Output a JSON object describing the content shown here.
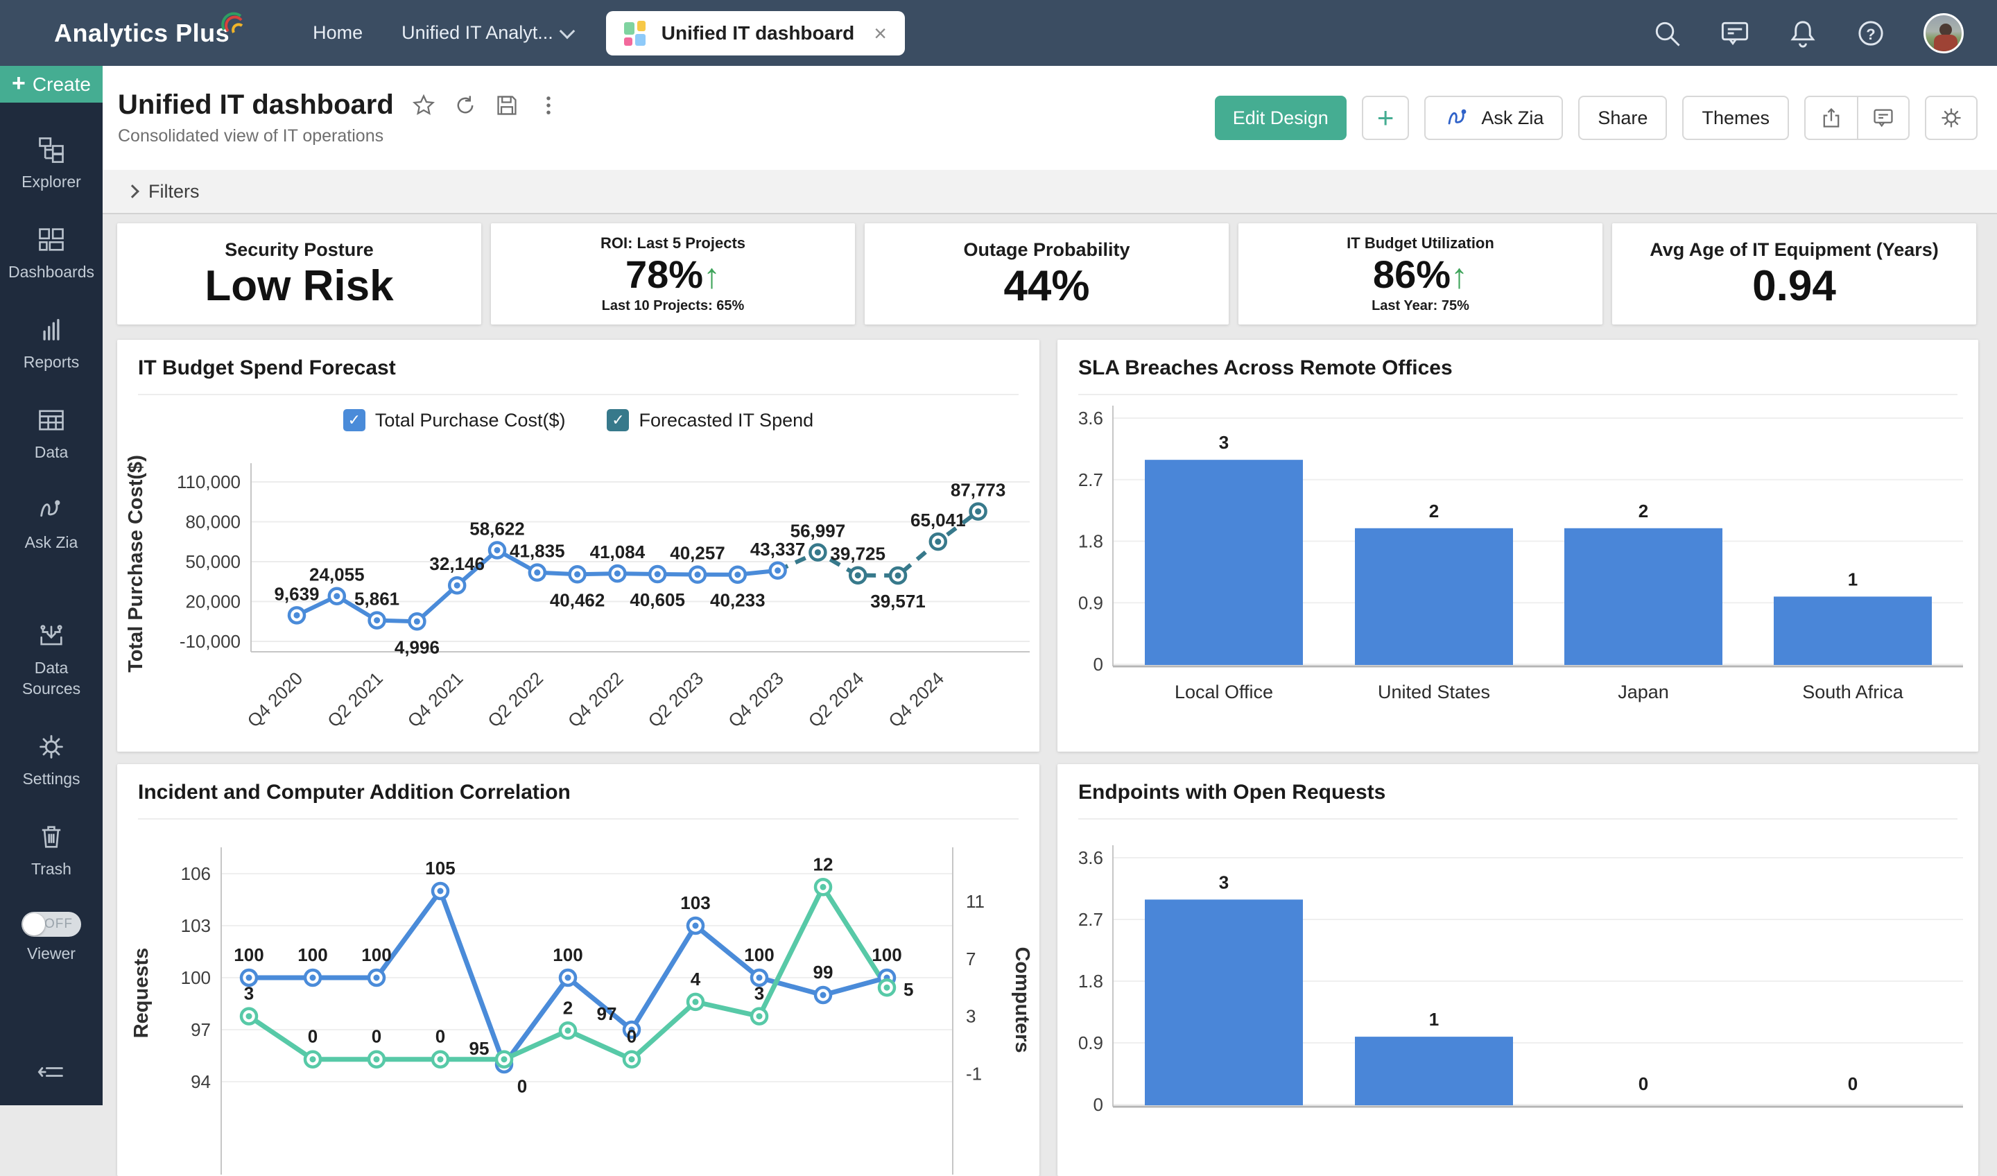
{
  "topbar": {
    "logo": "Analytics Plus",
    "nav": {
      "home": "Home",
      "workspace": "Unified IT Analyt...",
      "tab_title": "Unified IT dashboard",
      "tab_close": "×"
    }
  },
  "header": {
    "title": "Unified IT dashboard",
    "subtitle": "Consolidated view of IT operations",
    "buttons": {
      "edit_design": "Edit Design",
      "plus": "+",
      "ask_zia": "Ask Zia",
      "share": "Share",
      "themes": "Themes"
    }
  },
  "filters": {
    "label": "Filters"
  },
  "sidebar": {
    "create": "Create",
    "items": [
      {
        "label": "Explorer"
      },
      {
        "label": "Dashboards"
      },
      {
        "label": "Reports"
      },
      {
        "label": "Data"
      },
      {
        "label": "Ask Zia"
      },
      {
        "label": "Data Sources"
      },
      {
        "label": "Settings"
      },
      {
        "label": "Trash"
      }
    ],
    "viewer": {
      "label": "Viewer",
      "state": "OFF"
    }
  },
  "kpis": [
    {
      "title": "Security Posture",
      "value": "Low Risk"
    },
    {
      "title": "ROI: Last 5 Projects",
      "value": "78%",
      "arrow": "↑",
      "sub": "Last 10 Projects: 65%"
    },
    {
      "title": "Outage Probability",
      "value": "44%"
    },
    {
      "title": "IT Budget Utilization",
      "value": "86%",
      "arrow": "↑",
      "sub": "Last Year: 75%"
    },
    {
      "title": "Avg Age of IT Equipment (Years)",
      "value": "0.94"
    }
  ],
  "colors": {
    "accent_green": "#45ad92",
    "series_blue": "#4a8bd9",
    "series_teal": "#37798b",
    "series_mint": "#57c9a7",
    "bar_blue": "#4a86d8",
    "kpi_arrow_green": "#3fa45b"
  },
  "chart_data": [
    {
      "id": "budget",
      "type": "line",
      "title": "IT Budget Spend Forecast",
      "ylabel": "Total Purchase Cost($)",
      "ylim": [
        -10000,
        110000
      ],
      "grid": true,
      "legend_position": "top",
      "y_ticks": [
        "110,000",
        "80,000",
        "50,000",
        "20,000",
        "-10,000"
      ],
      "y_tick_values": [
        110000,
        80000,
        50000,
        20000,
        -10000
      ],
      "x_tick_labels": [
        "Q4 2020",
        "Q2 2021",
        "Q4 2021",
        "Q2 2022",
        "Q4 2022",
        "Q2 2023",
        "Q4 2023",
        "Q2 2024",
        "Q4 2024"
      ],
      "legend": [
        {
          "label": "Total Purchase Cost($)",
          "color": "#4a8bd9",
          "check": "✓"
        },
        {
          "label": "Forecasted IT Spend",
          "color": "#37798b",
          "check": "✓"
        }
      ],
      "series": [
        {
          "name": "Total Purchase Cost($)",
          "color": "#4a8bd9",
          "dash": false,
          "start_index": 0,
          "values": [
            9639,
            24055,
            5861,
            4996,
            32146,
            58622,
            41835,
            40462,
            41084,
            40605,
            40257,
            40233,
            43337
          ],
          "label_pos": [
            "a",
            "a",
            "a",
            "b",
            "a",
            "a",
            "a",
            "b",
            "a",
            "b",
            "a",
            "b",
            "a"
          ]
        },
        {
          "name": "Forecasted IT Spend",
          "color": "#37798b",
          "dash": true,
          "start_index": 12,
          "values": [
            43337,
            56997,
            39725,
            39571,
            65041,
            87773
          ],
          "label_pos": [
            "n",
            "a",
            "a",
            "b",
            "a",
            "a"
          ]
        }
      ]
    },
    {
      "id": "sla",
      "type": "bar",
      "title": "SLA Breaches Across Remote Offices",
      "categories": [
        "Local Office",
        "United States",
        "Japan",
        "South Africa"
      ],
      "values": [
        3,
        2,
        2,
        1
      ],
      "y_ticks": [
        "3.6",
        "2.7",
        "1.8",
        "0.9",
        "0"
      ],
      "ylim": [
        0,
        3.6
      ],
      "grid": true,
      "bar_color": "#4a86d8"
    },
    {
      "id": "incident",
      "type": "dual-line",
      "title": "Incident and Computer Addition Correlation",
      "y_left_label": "Requests",
      "y_right_label": "Computers",
      "y_left_ticks": [
        "106",
        "103",
        "100",
        "97",
        "94"
      ],
      "y_right_ticks": [
        "11",
        "7",
        "3",
        "-1"
      ],
      "ylim_left": [
        94,
        106
      ],
      "ylim_right": [
        -1,
        11
      ],
      "grid": true,
      "series": [
        {
          "name": "Requests",
          "axis": "left",
          "color": "#4a8bd9",
          "values": [
            100,
            100,
            100,
            105,
            95,
            100,
            97,
            103,
            100,
            99,
            100
          ],
          "label_pos": [
            "a",
            "a",
            "a",
            "a",
            "al",
            "a",
            "al",
            "a",
            "a",
            "a",
            "a"
          ]
        },
        {
          "name": "Computers",
          "axis": "right",
          "color": "#57c9a7",
          "values": [
            3,
            0,
            0,
            0,
            0,
            2,
            0,
            4,
            3,
            12,
            5
          ],
          "label_pos": [
            "a",
            "a",
            "a",
            "a",
            "br",
            "a",
            "a",
            "a",
            "a",
            "a",
            "r"
          ]
        }
      ]
    },
    {
      "id": "endpoints",
      "type": "bar",
      "title": "Endpoints with Open Requests",
      "categories": [
        "",
        "",
        "",
        ""
      ],
      "values": [
        3,
        1,
        0,
        0
      ],
      "y_ticks": [
        "3.6",
        "2.7",
        "1.8",
        "0.9",
        "0"
      ],
      "ylim": [
        0,
        3.6
      ],
      "grid": true,
      "bar_color": "#4a86d8"
    }
  ]
}
